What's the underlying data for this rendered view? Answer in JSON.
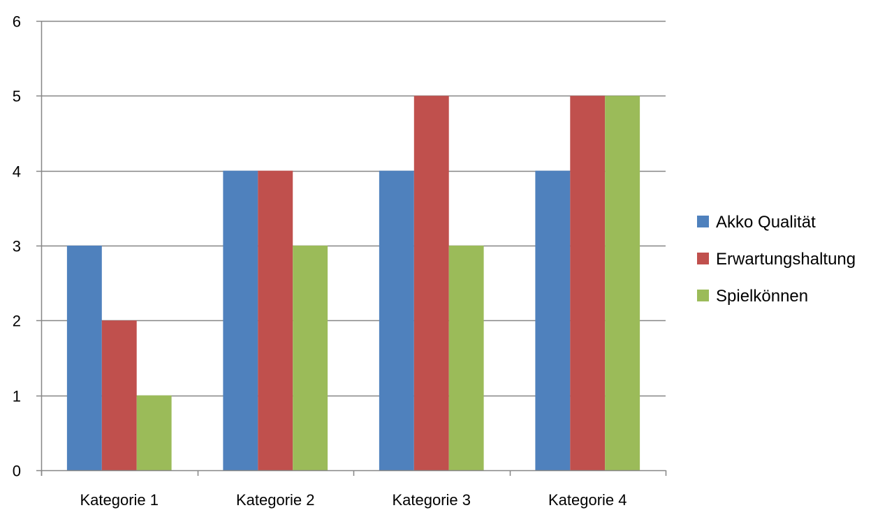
{
  "chart_data": {
    "type": "bar",
    "categories": [
      "Kategorie 1",
      "Kategorie 2",
      "Kategorie 3",
      "Kategorie 4"
    ],
    "series": [
      {
        "name": "Akko Qualität",
        "values": [
          3,
          4,
          4,
          4
        ],
        "color": "#4F81BD"
      },
      {
        "name": "Erwartungshaltung",
        "values": [
          2,
          4,
          5,
          5
        ],
        "color": "#C0504D"
      },
      {
        "name": "Spielkönnen",
        "values": [
          1,
          3,
          3,
          5
        ],
        "color": "#9BBB59"
      }
    ],
    "title": "",
    "xlabel": "",
    "ylabel": "",
    "ylim": [
      0,
      6
    ],
    "yticks": [
      0,
      1,
      2,
      3,
      4,
      5,
      6
    ],
    "grid": true,
    "legend_position": "right"
  }
}
